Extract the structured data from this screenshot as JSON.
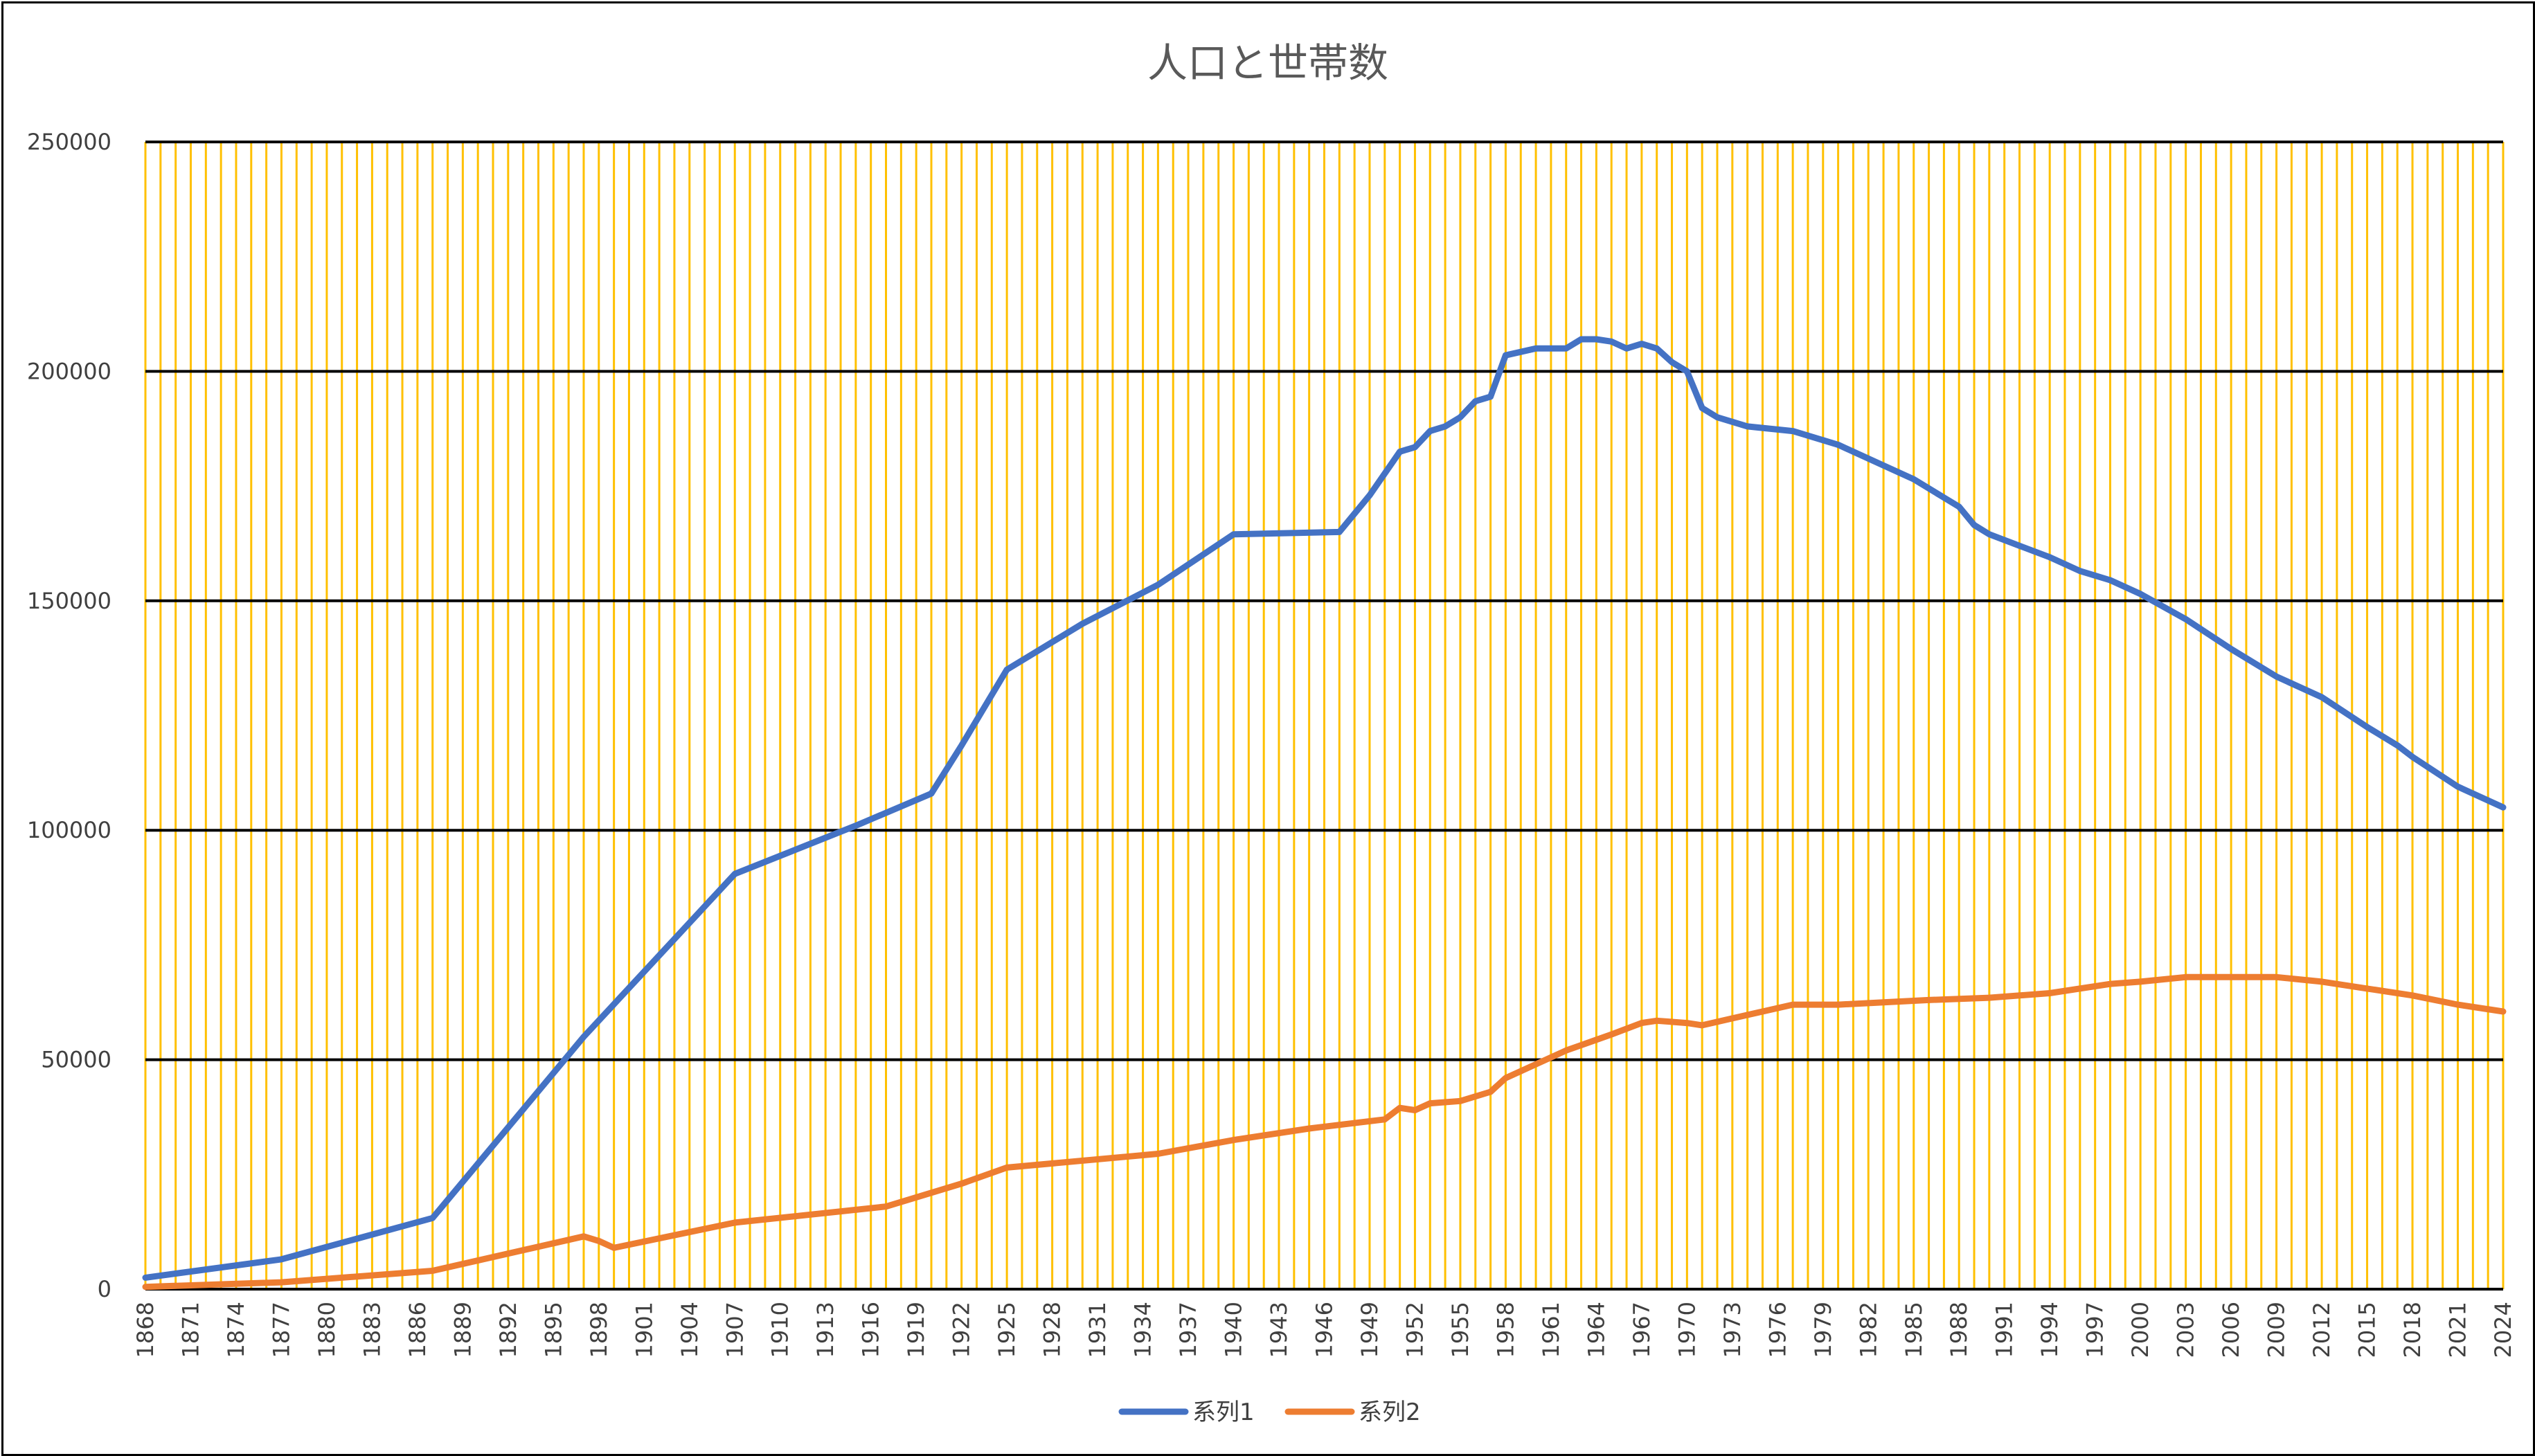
{
  "chart_data": {
    "type": "line",
    "title": "人口と世帯数",
    "xlabel": "",
    "ylabel": "",
    "x_range": [
      1868,
      2024
    ],
    "x_tick_step": 3,
    "ylim": [
      0,
      250000
    ],
    "y_ticks": [
      0,
      50000,
      100000,
      150000,
      200000,
      250000
    ],
    "grid": true,
    "legend_position": "bottom",
    "colors": {
      "series1": "#4472C4",
      "series2": "#ED7D31",
      "vertical_grid": "#FFC000",
      "horizontal_grid": "#000000"
    },
    "series": [
      {
        "name": "系列1",
        "points": [
          [
            1868,
            2500
          ],
          [
            1877,
            6500
          ],
          [
            1887,
            15500
          ],
          [
            1897,
            55000
          ],
          [
            1907,
            90500
          ],
          [
            1915,
            101000
          ],
          [
            1920,
            108000
          ],
          [
            1922,
            118500
          ],
          [
            1925,
            135000
          ],
          [
            1930,
            145000
          ],
          [
            1935,
            153500
          ],
          [
            1940,
            164500
          ],
          [
            1947,
            165000
          ],
          [
            1949,
            173000
          ],
          [
            1951,
            182500
          ],
          [
            1952,
            183500
          ],
          [
            1953,
            187000
          ],
          [
            1954,
            188000
          ],
          [
            1955,
            190000
          ],
          [
            1956,
            193500
          ],
          [
            1957,
            194500
          ],
          [
            1958,
            203500
          ],
          [
            1960,
            205000
          ],
          [
            1962,
            205000
          ],
          [
            1963,
            207000
          ],
          [
            1964,
            207000
          ],
          [
            1965,
            206500
          ],
          [
            1966,
            205000
          ],
          [
            1967,
            206000
          ],
          [
            1968,
            205000
          ],
          [
            1969,
            202000
          ],
          [
            1970,
            200000
          ],
          [
            1971,
            192000
          ],
          [
            1972,
            190000
          ],
          [
            1974,
            188000
          ],
          [
            1977,
            187000
          ],
          [
            1980,
            184000
          ],
          [
            1983,
            179500
          ],
          [
            1985,
            176500
          ],
          [
            1987,
            172500
          ],
          [
            1988,
            170500
          ],
          [
            1989,
            166500
          ],
          [
            1990,
            164500
          ],
          [
            1992,
            162000
          ],
          [
            1994,
            159500
          ],
          [
            1996,
            156500
          ],
          [
            1998,
            154500
          ],
          [
            2000,
            151500
          ],
          [
            2003,
            146000
          ],
          [
            2006,
            139500
          ],
          [
            2009,
            133500
          ],
          [
            2012,
            129000
          ],
          [
            2015,
            122500
          ],
          [
            2017,
            118500
          ],
          [
            2018,
            116000
          ],
          [
            2021,
            109500
          ],
          [
            2024,
            105000
          ]
        ]
      },
      {
        "name": "系列2",
        "points": [
          [
            1868,
            500
          ],
          [
            1877,
            1500
          ],
          [
            1887,
            4000
          ],
          [
            1897,
            11500
          ],
          [
            1898,
            10500
          ],
          [
            1899,
            9000
          ],
          [
            1907,
            14500
          ],
          [
            1917,
            18000
          ],
          [
            1922,
            23000
          ],
          [
            1925,
            26500
          ],
          [
            1935,
            29500
          ],
          [
            1940,
            32500
          ],
          [
            1945,
            35000
          ],
          [
            1950,
            37000
          ],
          [
            1951,
            39500
          ],
          [
            1952,
            39000
          ],
          [
            1953,
            40500
          ],
          [
            1955,
            41000
          ],
          [
            1957,
            43000
          ],
          [
            1958,
            46000
          ],
          [
            1960,
            49000
          ],
          [
            1962,
            52000
          ],
          [
            1965,
            55500
          ],
          [
            1967,
            58000
          ],
          [
            1968,
            58500
          ],
          [
            1970,
            58000
          ],
          [
            1971,
            57500
          ],
          [
            1973,
            59000
          ],
          [
            1975,
            60500
          ],
          [
            1977,
            62000
          ],
          [
            1980,
            62000
          ],
          [
            1983,
            62500
          ],
          [
            1986,
            63000
          ],
          [
            1990,
            63500
          ],
          [
            1994,
            64500
          ],
          [
            1998,
            66500
          ],
          [
            2000,
            67000
          ],
          [
            2003,
            68000
          ],
          [
            2009,
            68000
          ],
          [
            2012,
            67000
          ],
          [
            2015,
            65500
          ],
          [
            2018,
            64000
          ],
          [
            2021,
            62000
          ],
          [
            2024,
            60500
          ]
        ]
      }
    ]
  }
}
